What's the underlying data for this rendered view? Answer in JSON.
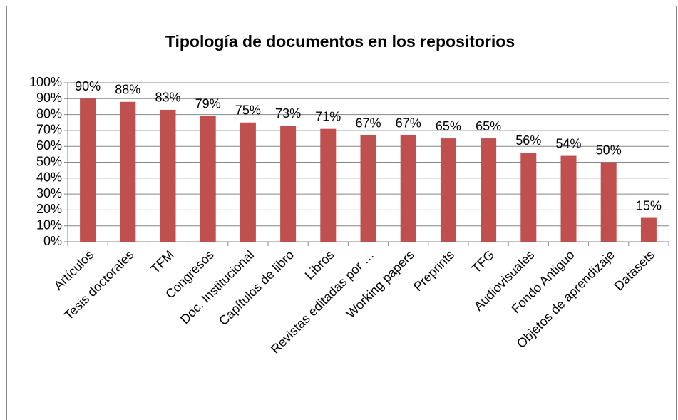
{
  "chart_data": {
    "type": "bar",
    "title": "Tipología de documentos en los repositorios",
    "categories": [
      "Artículos",
      "Tesis doctorales",
      "TFM",
      "Congresos",
      "Doc. Institucional",
      "Capítulos de libro",
      "Libros",
      "Revistas editadas por …",
      "Working papers",
      "Preprints",
      "TFG",
      "Audiovisuales",
      "Fondo Antiguo",
      "Objetos de aprendizaje",
      "Datasets"
    ],
    "values": [
      90,
      88,
      83,
      79,
      75,
      73,
      71,
      67,
      67,
      65,
      65,
      56,
      54,
      50,
      15
    ],
    "value_labels": [
      "90%",
      "88%",
      "83%",
      "79%",
      "75%",
      "73%",
      "71%",
      "67%",
      "67%",
      "65%",
      "65%",
      "56%",
      "54%",
      "50%",
      "15%"
    ],
    "color": "#c0504d",
    "ylim": [
      0,
      100
    ],
    "yticks": [
      {
        "value": 0,
        "label": "0%"
      },
      {
        "value": 10,
        "label": "10%"
      },
      {
        "value": 20,
        "label": "20%"
      },
      {
        "value": 30,
        "label": "30%"
      },
      {
        "value": 40,
        "label": "40%"
      },
      {
        "value": 50,
        "label": "50%"
      },
      {
        "value": 60,
        "label": "60%"
      },
      {
        "value": 70,
        "label": "70%"
      },
      {
        "value": 80,
        "label": "80%"
      },
      {
        "value": 90,
        "label": "90%"
      },
      {
        "value": 100,
        "label": "100%"
      }
    ],
    "grid": true
  }
}
